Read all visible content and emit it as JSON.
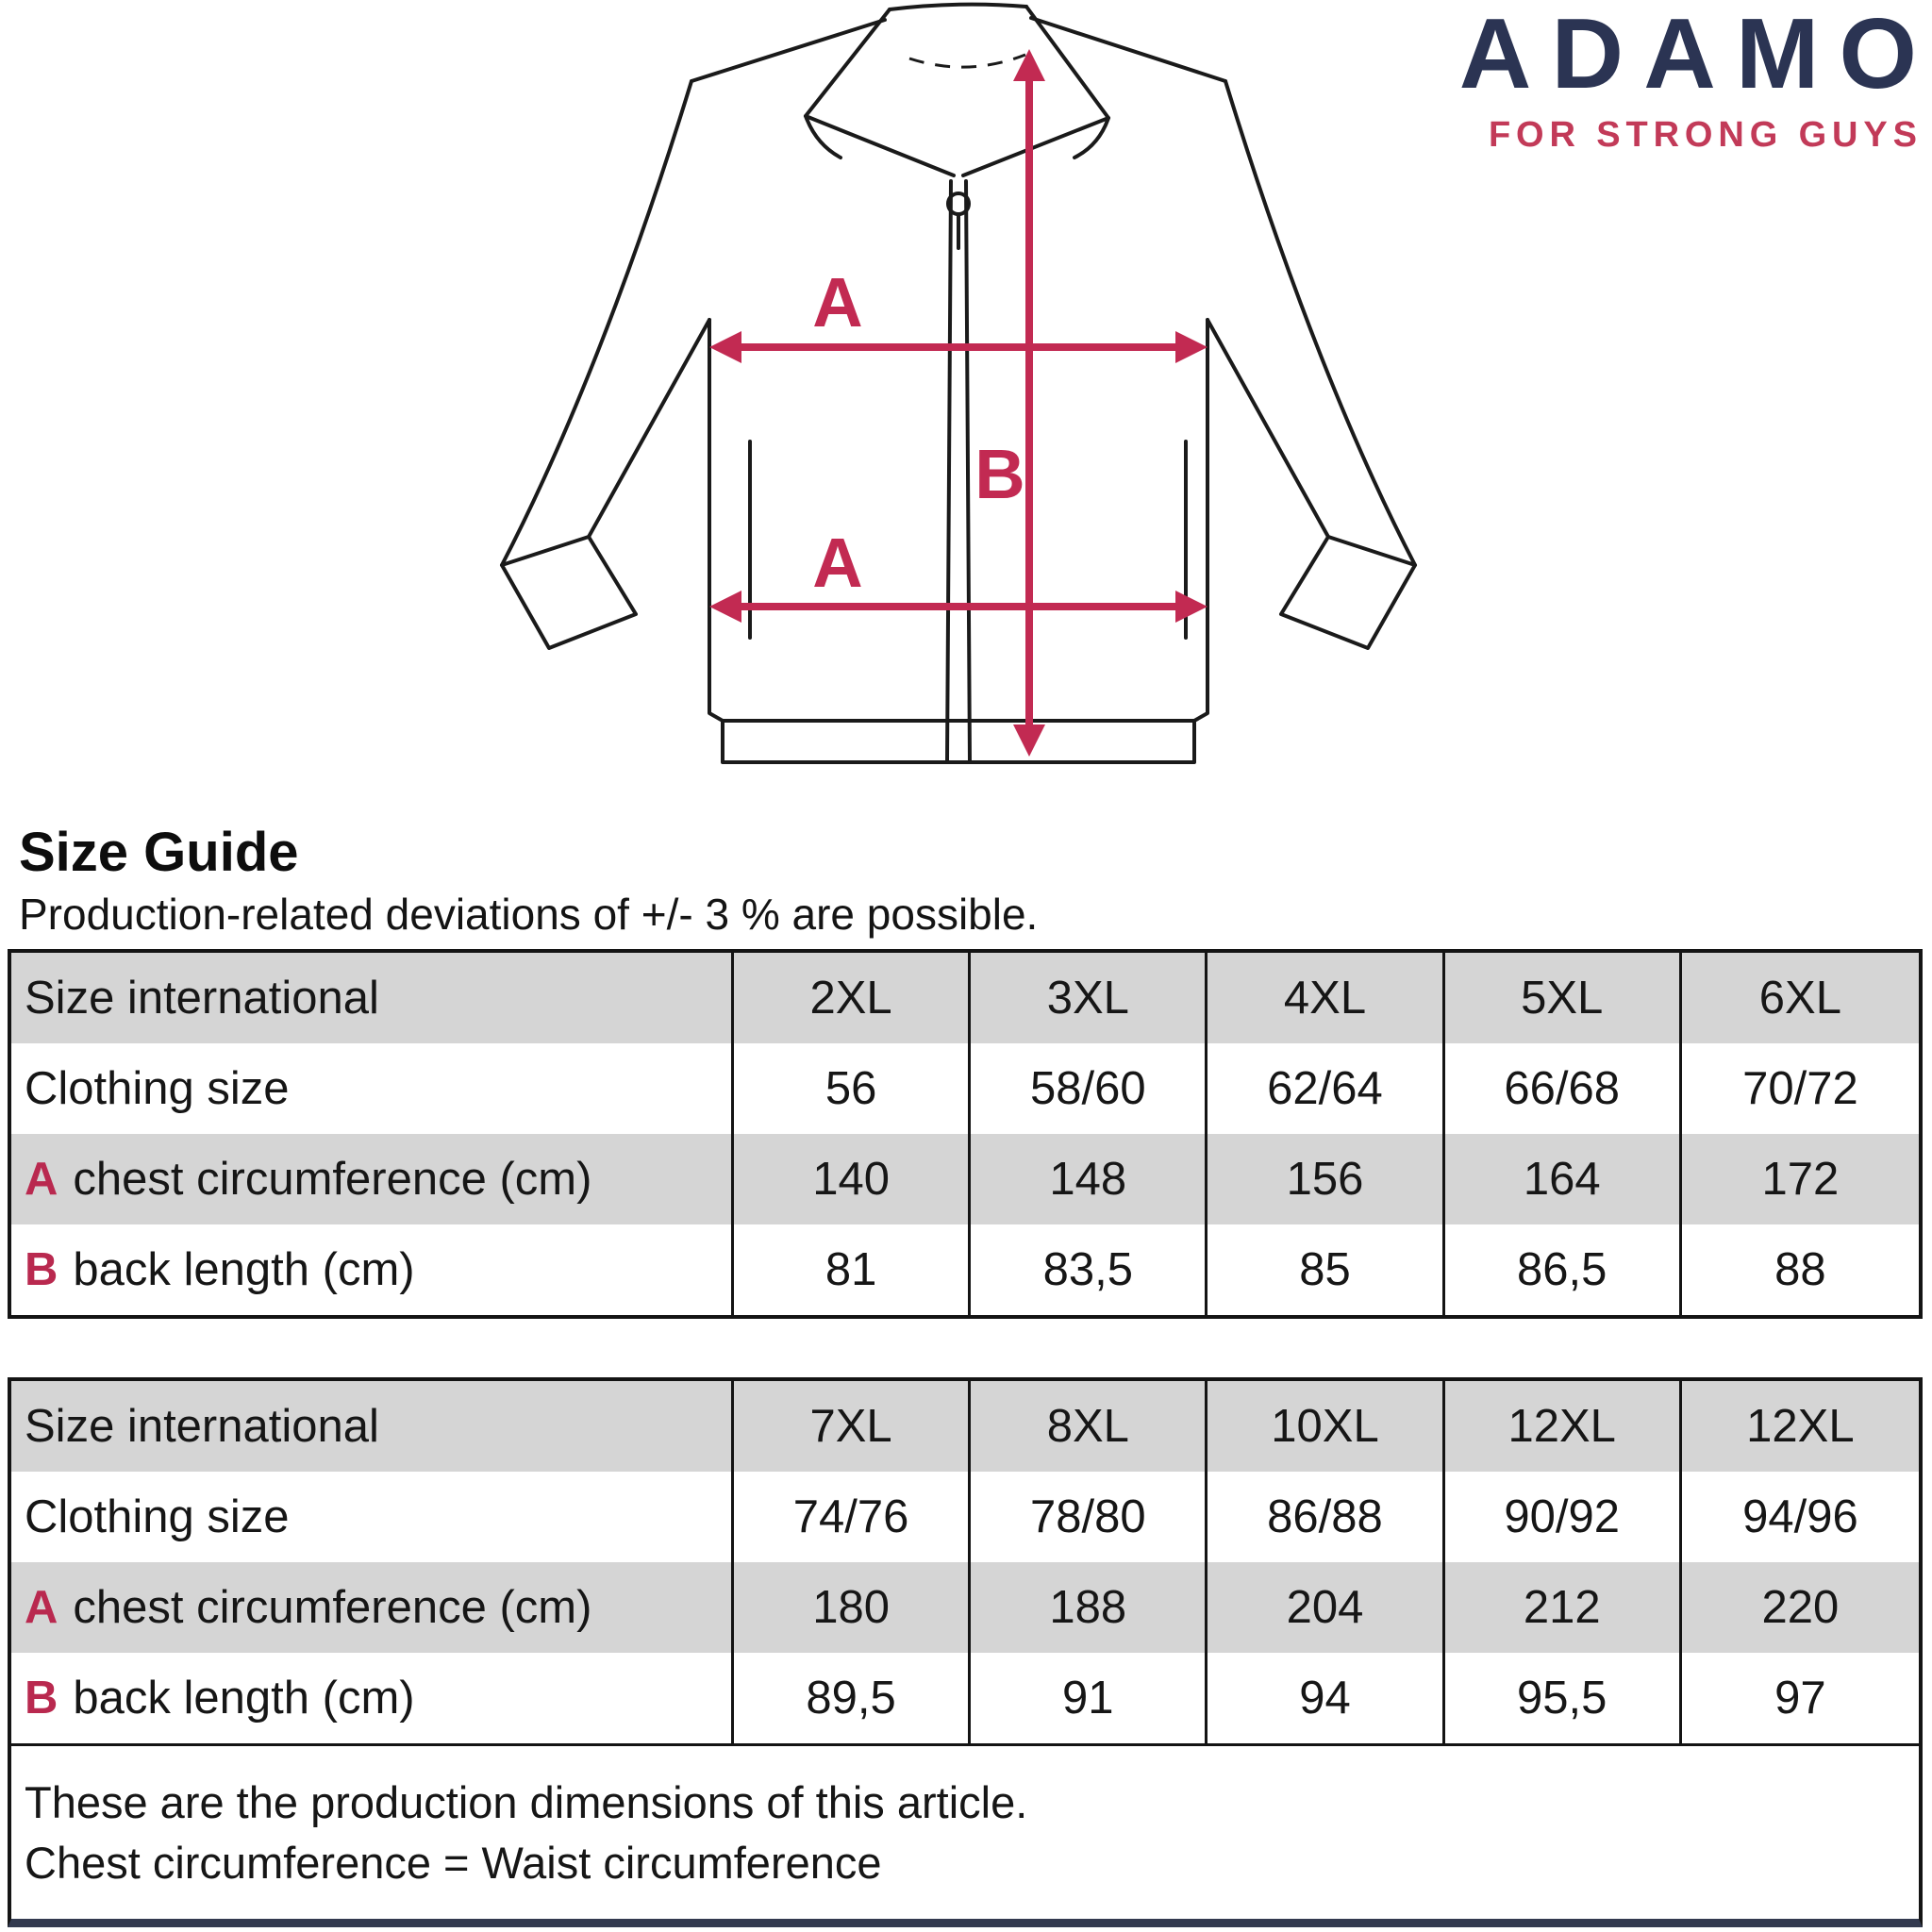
{
  "brand": {
    "name": "ADAMO",
    "tagline": "FOR STRONG GUYS",
    "navy_color": "#2b3453",
    "red_color": "#c22a52"
  },
  "heading": {
    "title": "Size Guide",
    "subtitle": "Production-related deviations of +/- 3 % are possible."
  },
  "diagram": {
    "label_a_chest": "A",
    "label_a_hem": "A",
    "label_b": "B",
    "arrow_color": "#c22a52",
    "line_color": "#1a1a1a"
  },
  "tables": [
    {
      "rows": [
        {
          "prefix": "",
          "label": "Size international",
          "values": [
            "2XL",
            "3XL",
            "4XL",
            "5XL",
            "6XL"
          ]
        },
        {
          "prefix": "",
          "label": "Clothing size",
          "values": [
            "56",
            "58/60",
            "62/64",
            "66/68",
            "70/72"
          ]
        },
        {
          "prefix": "A",
          "label": "chest circumference (cm)",
          "values": [
            "140",
            "148",
            "156",
            "164",
            "172"
          ]
        },
        {
          "prefix": "B",
          "label": "back length (cm)",
          "values": [
            "81",
            "83,5",
            "85",
            "86,5",
            "88"
          ]
        }
      ],
      "footer_lines": []
    },
    {
      "rows": [
        {
          "prefix": "",
          "label": "Size international",
          "values": [
            "7XL",
            "8XL",
            "10XL",
            "12XL",
            "12XL"
          ]
        },
        {
          "prefix": "",
          "label": "Clothing size",
          "values": [
            "74/76",
            "78/80",
            "86/88",
            "90/92",
            "94/96"
          ]
        },
        {
          "prefix": "A",
          "label": "chest circumference (cm)",
          "values": [
            "180",
            "188",
            "204",
            "212",
            "220"
          ]
        },
        {
          "prefix": "B",
          "label": "back length (cm)",
          "values": [
            "89,5",
            "91",
            "94",
            "95,5",
            "97"
          ]
        }
      ],
      "footer_lines": [
        "These are the production dimensions of this article.",
        "Chest circumference = Waist circumference"
      ]
    }
  ],
  "table_style": {
    "header_gray": "#d5d5d5",
    "border_black": "#141414",
    "bottom_bar_navy": "#333a4f"
  }
}
